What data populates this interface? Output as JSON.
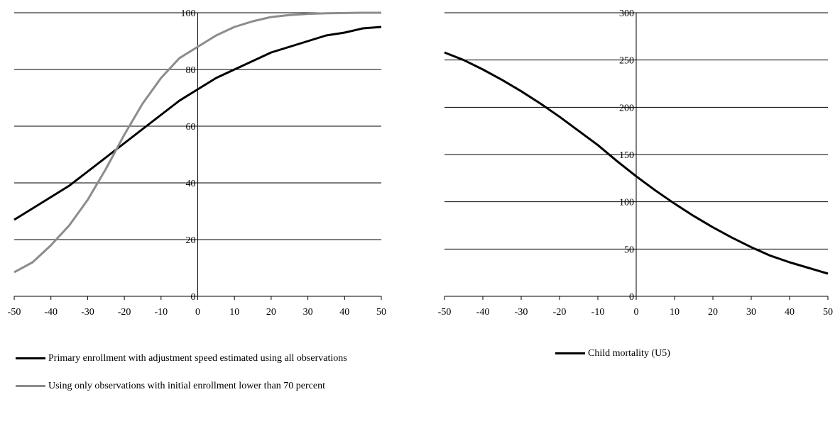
{
  "chart_data": [
    {
      "type": "line",
      "xlim": [
        -50,
        50
      ],
      "ylim": [
        0,
        100
      ],
      "x_ticks": [
        "-50",
        "-40",
        "-30",
        "-20",
        "-10",
        "0",
        "10",
        "20",
        "30",
        "40",
        "50"
      ],
      "y_ticks": [
        "0",
        "20",
        "40",
        "60",
        "80",
        "100"
      ],
      "grid": "horizontal",
      "legend_position": "bottom-left",
      "series": [
        {
          "name": "Primary enrollment with adjustment speed estimated using all observations",
          "color": "#000000",
          "x": [
            -50,
            -45,
            -40,
            -35,
            -30,
            -25,
            -20,
            -15,
            -10,
            -5,
            0,
            5,
            10,
            15,
            20,
            25,
            30,
            35,
            40,
            45,
            50
          ],
          "y": [
            27,
            31,
            35,
            39,
            44,
            49,
            54,
            59,
            64,
            69,
            73,
            77,
            80,
            83,
            86,
            88,
            90,
            92,
            93,
            94.5,
            95
          ]
        },
        {
          "name": "Using only observations with initial enrollment lower than 70 percent",
          "color": "#8c8c8c",
          "x": [
            -50,
            -45,
            -40,
            -35,
            -30,
            -25,
            -20,
            -15,
            -10,
            -5,
            0,
            5,
            10,
            15,
            20,
            25,
            30,
            35,
            40,
            45,
            50
          ],
          "y": [
            8.5,
            12,
            18,
            25,
            34,
            45,
            57,
            68,
            77,
            84,
            88,
            92,
            95,
            97,
            98.5,
            99.2,
            99.6,
            99.8,
            99.9,
            100,
            100
          ]
        }
      ]
    },
    {
      "type": "line",
      "xlim": [
        -50,
        50
      ],
      "ylim": [
        0,
        300
      ],
      "x_ticks": [
        "-50",
        "-40",
        "-30",
        "-20",
        "-10",
        "0",
        "10",
        "20",
        "30",
        "40",
        "50"
      ],
      "y_ticks": [
        "0",
        "50",
        "100",
        "150",
        "200",
        "250",
        "300"
      ],
      "grid": "horizontal",
      "legend_position": "bottom-center",
      "series": [
        {
          "name": "Child mortality (U5)",
          "color": "#000000",
          "x": [
            -50,
            -45,
            -40,
            -35,
            -30,
            -25,
            -20,
            -15,
            -10,
            -5,
            0,
            5,
            10,
            15,
            20,
            25,
            30,
            35,
            40,
            45,
            50
          ],
          "y": [
            258,
            250,
            240,
            229,
            217,
            204,
            190,
            175,
            160,
            143,
            127,
            112,
            98,
            85,
            73,
            62,
            52,
            43,
            36,
            30,
            24
          ]
        }
      ]
    }
  ]
}
